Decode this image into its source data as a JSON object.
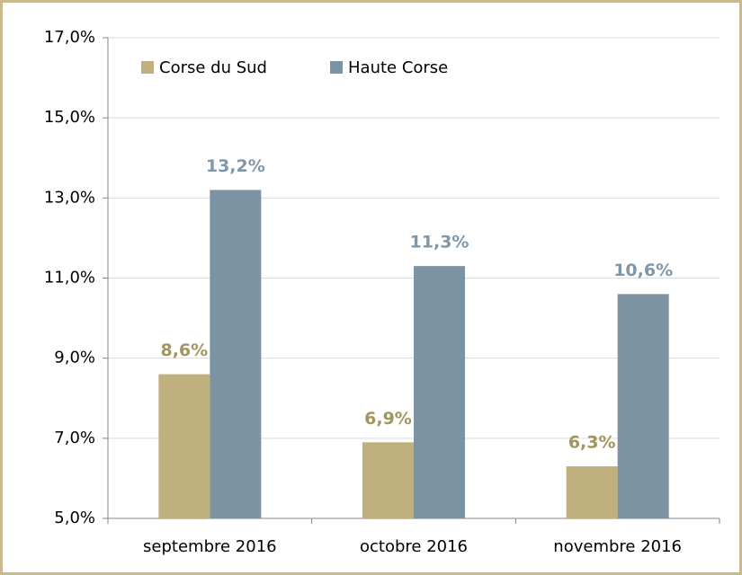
{
  "chart_data": {
    "type": "bar",
    "categories": [
      "septembre 2016",
      "octobre 2016",
      "novembre 2016"
    ],
    "series": [
      {
        "name": "Corse du Sud",
        "color": "#bfb07e",
        "label_color": "#a4955c",
        "values": [
          8.6,
          6.9,
          6.3
        ],
        "value_labels": [
          "8,6%",
          "6,9%",
          "6,3%"
        ]
      },
      {
        "name": "Haute Corse",
        "color": "#7b93a3",
        "label_color": "#7f97aa",
        "values": [
          13.2,
          11.3,
          10.6
        ],
        "value_labels": [
          "13,2%",
          "11,3%",
          "10,6%"
        ]
      }
    ],
    "ylim": [
      5,
      17
    ],
    "yticks": [
      {
        "value": 5,
        "label": "5,0%"
      },
      {
        "value": 7,
        "label": "7,0%"
      },
      {
        "value": 9,
        "label": "9,0%"
      },
      {
        "value": 11,
        "label": "11,0%"
      },
      {
        "value": 13,
        "label": "13,0%"
      },
      {
        "value": 15,
        "label": "15,0%"
      },
      {
        "value": 17,
        "label": "17,0%"
      }
    ],
    "grid": true,
    "legend": "top-left"
  }
}
